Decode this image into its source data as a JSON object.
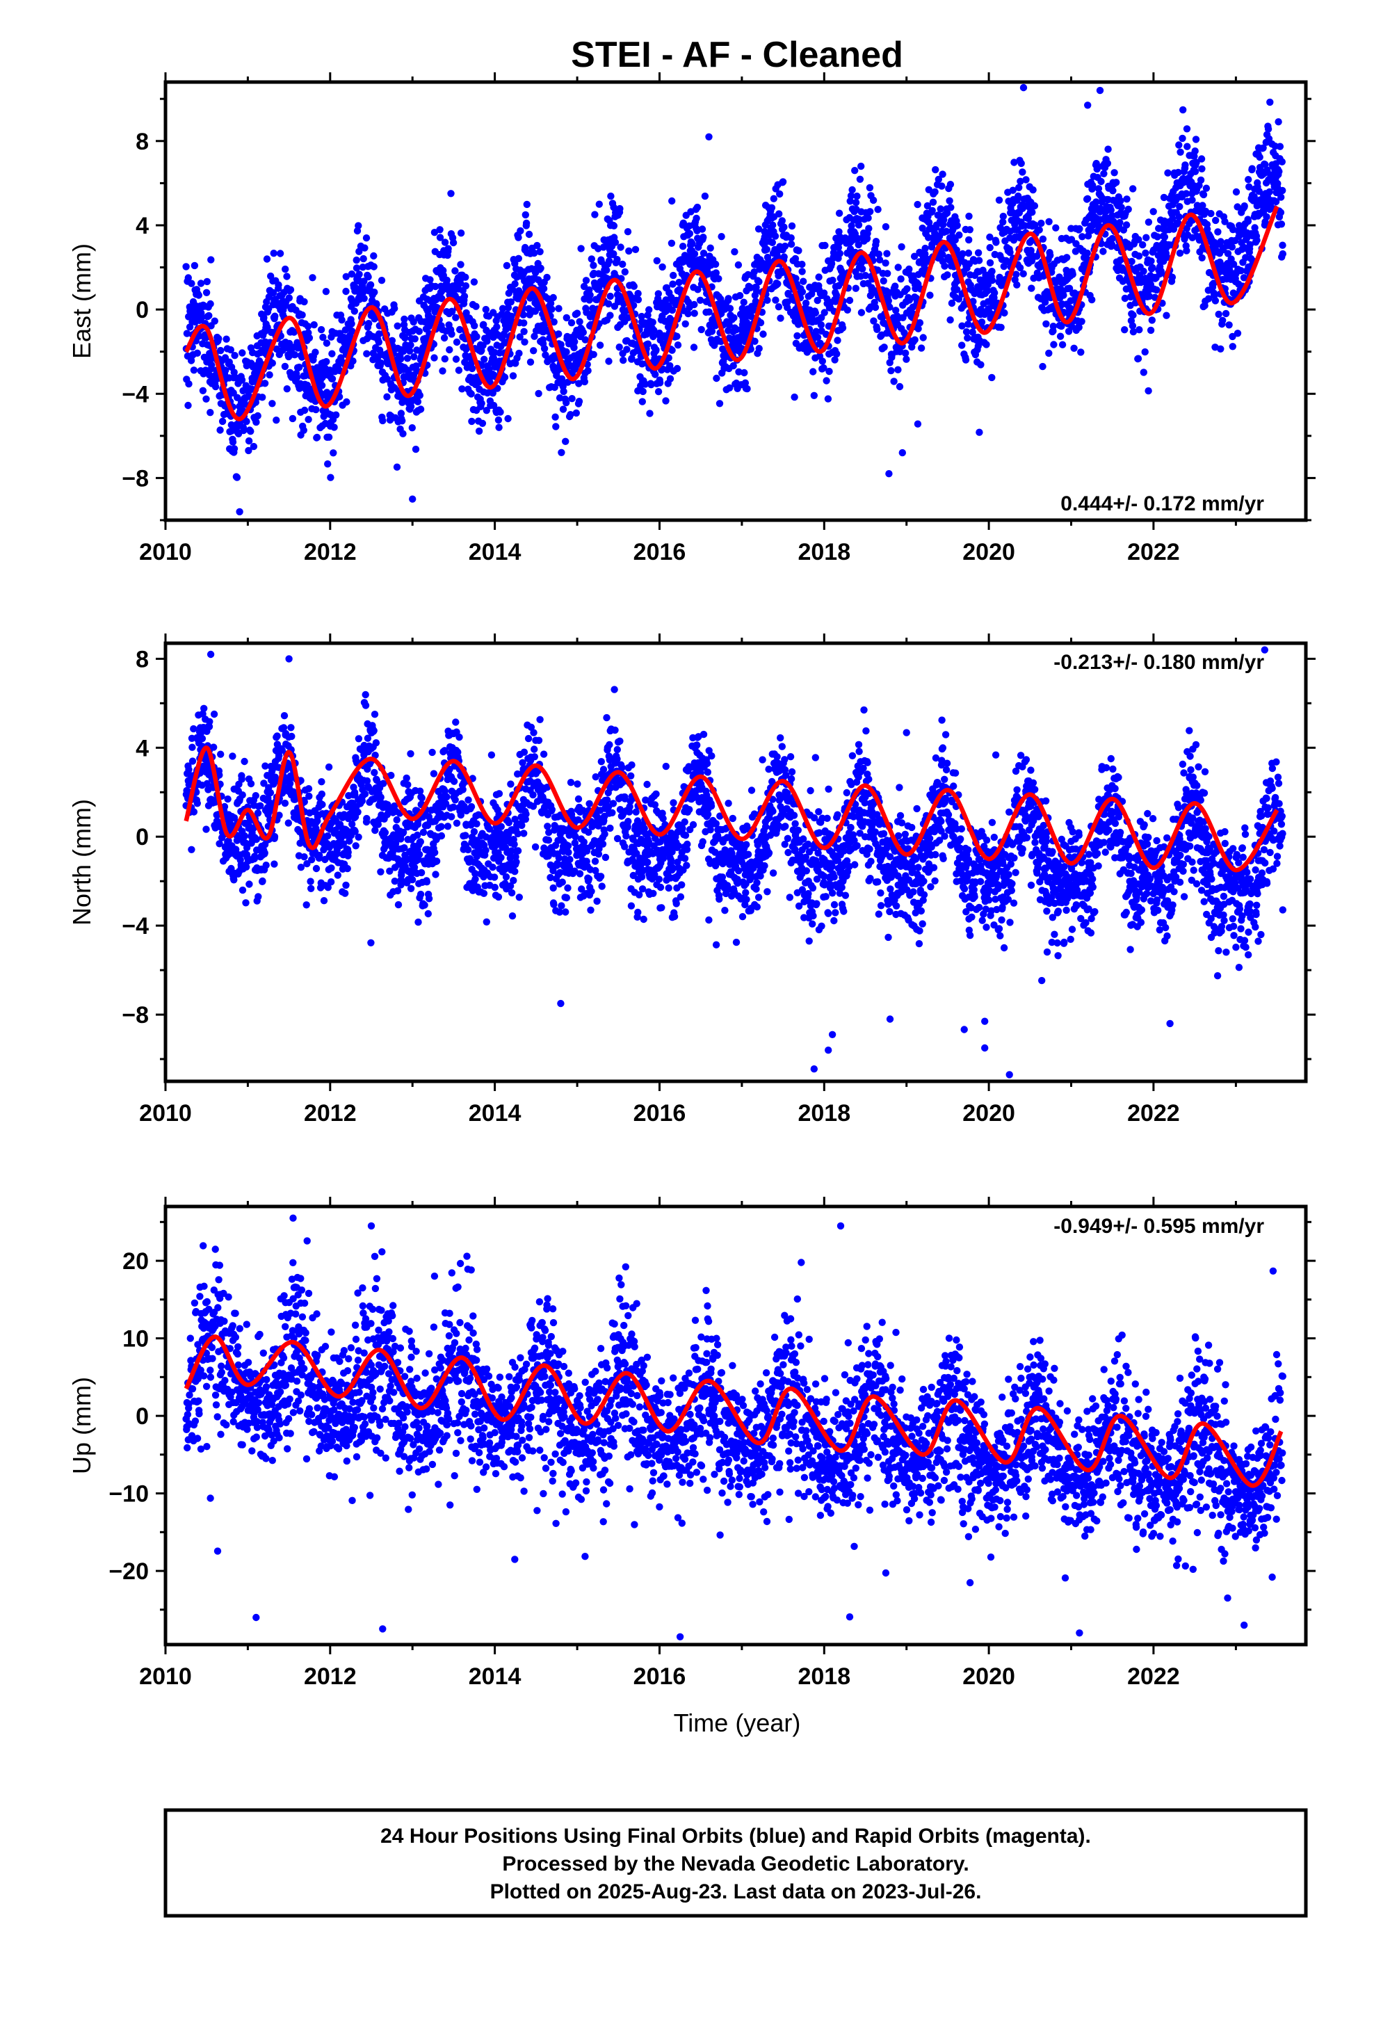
{
  "title": "STEI  - AF - Cleaned",
  "xlabel": "Time (year)",
  "footer": {
    "line1": "24 Hour Positions Using Final Orbits (blue) and Rapid Orbits (magenta).",
    "line2": "Processed by the Nevada Geodetic Laboratory.",
    "line3": "Plotted on 2025-Aug-23. Last data on 2023-Jul-26."
  },
  "colors": {
    "points": "#0000ff",
    "fit": "#ff0000",
    "frame": "#000000"
  },
  "chart_data": [
    {
      "type": "scatter",
      "ylabel": "East (mm)",
      "rate_label": "0.444+/- 0.172 mm/yr",
      "xlim": [
        2010,
        2023.85
      ],
      "ylim": [
        -10,
        10.8
      ],
      "xticks": [
        2010,
        2012,
        2014,
        2016,
        2018,
        2020,
        2022
      ],
      "yticks": [
        -8,
        -4,
        0,
        4,
        8
      ],
      "data_range": [
        2010.25,
        2023.57
      ],
      "model": {
        "trend_at_2010": -3.0,
        "slope": 0.5,
        "annual_amp": 2.2,
        "annual_phase_year": 0.4,
        "semiannual_amp": 0.25,
        "scatter_sd": 1.45,
        "annual_scatter_mod": 0.0
      },
      "fit_samples": {
        "x": [
          2010.25,
          2010.5,
          2010.9,
          2011.5,
          2011.95,
          2012.5,
          2012.95,
          2013.45,
          2013.95,
          2014.45,
          2014.95,
          2015.45,
          2015.95,
          2016.45,
          2016.95,
          2017.45,
          2017.95,
          2018.45,
          2018.95,
          2019.45,
          2019.95,
          2020.5,
          2020.95,
          2021.45,
          2021.95,
          2022.45,
          2022.95,
          2023.5
        ],
        "y": [
          -2.0,
          -0.9,
          -5.2,
          -0.4,
          -4.6,
          0.1,
          -4.1,
          0.5,
          -3.7,
          1.0,
          -3.3,
          1.4,
          -2.8,
          1.8,
          -2.4,
          2.3,
          -2.0,
          2.7,
          -1.6,
          3.2,
          -1.1,
          3.6,
          -0.6,
          4.0,
          -0.2,
          4.5,
          0.3,
          4.9
        ]
      },
      "outliers": [
        [
          2010.9,
          -9.6
        ],
        [
          2013.0,
          -9.0
        ],
        [
          2016.6,
          8.2
        ],
        [
          2021.35,
          10.4
        ],
        [
          2021.2,
          9.7
        ],
        [
          2018.95,
          -6.8
        ]
      ]
    },
    {
      "type": "scatter",
      "ylabel": "North (mm)",
      "rate_label": "-0.213+/- 0.180 mm/yr",
      "xlim": [
        2010,
        2023.85
      ],
      "ylim": [
        -11,
        8.7
      ],
      "xticks": [
        2010,
        2012,
        2014,
        2016,
        2018,
        2020,
        2022
      ],
      "yticks": [
        -8,
        -4,
        0,
        4,
        8
      ],
      "data_range": [
        2010.25,
        2023.57
      ],
      "model": {
        "trend_at_2010": 1.3,
        "slope": -0.2,
        "annual_amp": 1.6,
        "annual_phase_year": 0.46,
        "semiannual_amp": 0.9,
        "scatter_sd": 1.25,
        "annual_scatter_mod": 0.0
      },
      "fit_samples": {
        "x": [
          2010.25,
          2010.5,
          2010.75,
          2011.0,
          2011.25,
          2011.5,
          2011.75,
          2012.0,
          2012.5,
          2013.0,
          2013.5,
          2014.0,
          2014.5,
          2015.0,
          2015.5,
          2016.0,
          2016.5,
          2017.0,
          2017.5,
          2018.0,
          2018.5,
          2019.0,
          2019.5,
          2020.0,
          2020.5,
          2021.0,
          2021.5,
          2022.0,
          2022.5,
          2023.0,
          2023.5
        ],
        "y": [
          0.7,
          4.0,
          0.1,
          1.2,
          0.0,
          3.8,
          -0.4,
          1.0,
          3.5,
          0.8,
          3.4,
          0.6,
          3.2,
          0.4,
          2.9,
          0.1,
          2.7,
          -0.1,
          2.5,
          -0.5,
          2.3,
          -0.8,
          2.1,
          -1.0,
          1.9,
          -1.2,
          1.7,
          -1.4,
          1.5,
          -1.5,
          1.2
        ]
      },
      "outliers": [
        [
          2014.8,
          -7.5
        ],
        [
          2018.1,
          -8.9
        ],
        [
          2018.05,
          -9.6
        ],
        [
          2018.8,
          -8.2
        ],
        [
          2019.95,
          -8.3
        ],
        [
          2019.95,
          -9.5
        ],
        [
          2020.25,
          -10.7
        ],
        [
          2022.2,
          -8.4
        ],
        [
          2010.55,
          8.2
        ],
        [
          2011.5,
          8.0
        ],
        [
          2023.35,
          8.4
        ]
      ]
    },
    {
      "type": "scatter",
      "ylabel": "Up (mm)",
      "rate_label": "-0.949+/- 0.595 mm/yr",
      "xlim": [
        2010,
        2023.85
      ],
      "ylim": [
        -29.5,
        27
      ],
      "xticks": [
        2010,
        2012,
        2014,
        2016,
        2018,
        2020,
        2022
      ],
      "yticks": [
        -20,
        -10,
        0,
        10,
        20
      ],
      "data_range": [
        2010.25,
        2023.57
      ],
      "model": {
        "trend_at_2010": 5.5,
        "slope": -0.95,
        "annual_amp": 3.8,
        "annual_phase_year": 0.58,
        "semiannual_amp": 0.8,
        "scatter_sd": 4.6,
        "annual_scatter_mod": 0.25
      },
      "fit_samples": {
        "x": [
          2010.25,
          2010.6,
          2011.0,
          2011.55,
          2012.1,
          2012.6,
          2013.1,
          2013.6,
          2014.1,
          2014.6,
          2015.1,
          2015.6,
          2016.1,
          2016.6,
          2017.2,
          2017.6,
          2018.2,
          2018.6,
          2019.2,
          2019.6,
          2020.2,
          2020.6,
          2021.2,
          2021.6,
          2022.2,
          2022.6,
          2023.2,
          2023.55
        ],
        "y": [
          3.5,
          10.2,
          4.0,
          9.5,
          2.5,
          8.5,
          1.0,
          7.5,
          -0.5,
          6.5,
          -1.0,
          5.5,
          -2.0,
          4.5,
          -3.5,
          3.5,
          -4.5,
          2.5,
          -5.0,
          2.0,
          -6.0,
          1.0,
          -7.0,
          0.0,
          -8.0,
          -1.0,
          -9.0,
          -2.0
        ]
      },
      "outliers": [
        [
          2011.55,
          25.5
        ],
        [
          2012.5,
          24.5
        ],
        [
          2018.2,
          24.5
        ],
        [
          2011.1,
          -26.0
        ],
        [
          2016.25,
          -28.5
        ],
        [
          2021.1,
          -28.0
        ],
        [
          2022.9,
          -23.5
        ],
        [
          2023.1,
          -27.0
        ]
      ]
    }
  ]
}
